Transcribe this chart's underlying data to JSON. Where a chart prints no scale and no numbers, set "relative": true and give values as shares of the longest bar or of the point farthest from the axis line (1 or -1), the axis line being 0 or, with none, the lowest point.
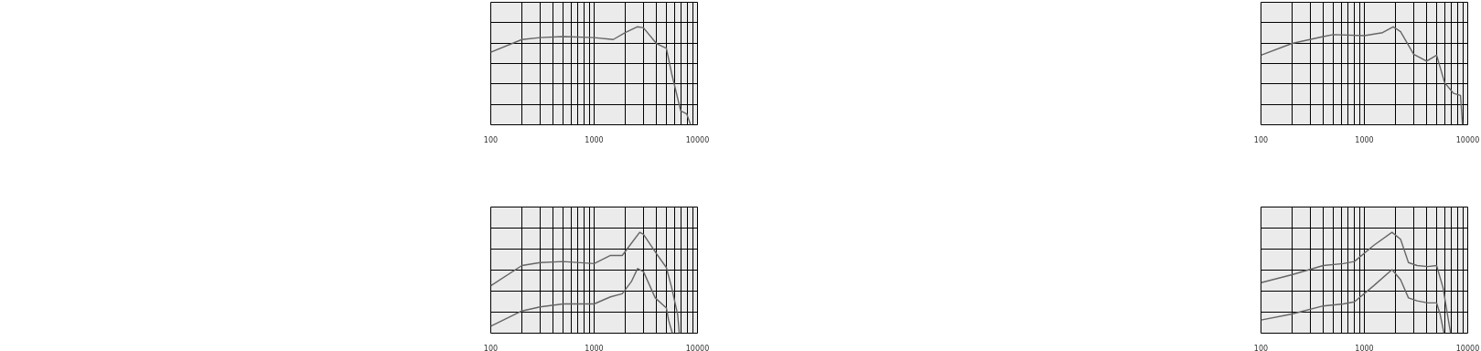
{
  "chart_data": [
    {
      "type": "line",
      "relative": true,
      "log": "x",
      "grid": true,
      "marker": "none",
      "line_style": "solid",
      "xlim": [
        100,
        10000
      ],
      "xticks": [
        100,
        1000,
        10000
      ],
      "series": [
        {
          "color": "#666666",
          "x": [
            100,
            200,
            300,
            500,
            1000,
            1530,
            2000,
            2610,
            3000,
            4000,
            5000,
            5630,
            6890,
            7870,
            8570
          ],
          "values": [
            0.74,
            0.87,
            0.89,
            0.9,
            0.89,
            0.87,
            0.94,
            1,
            0.99,
            0.83,
            0.78,
            0.52,
            0.14,
            0.11,
            0
          ]
        }
      ]
    },
    {
      "type": "line",
      "relative": true,
      "log": "x",
      "grid": true,
      "marker": "none",
      "line_style": "solid",
      "xlim": [
        100,
        10000
      ],
      "xticks": [
        100,
        1000,
        10000
      ],
      "series": [
        {
          "color": "#666666",
          "x": [
            100,
            200,
            300,
            500,
            1000,
            1440,
            1870,
            2290,
            2760,
            3000,
            4000,
            5000,
            5630,
            6440,
            6660
          ],
          "values": [
            0.47,
            0.67,
            0.7,
            0.71,
            0.69,
            0.77,
            0.77,
            0.89,
            1,
            0.98,
            0.79,
            0.65,
            0.45,
            0.18,
            0
          ]
        },
        {
          "color": "#666666",
          "x": [
            100,
            200,
            300,
            500,
            1000,
            1440,
            1870,
            2290,
            2630,
            3000,
            3900,
            5000,
            5250,
            5710
          ],
          "values": [
            0.07,
            0.22,
            0.26,
            0.29,
            0.29,
            0.36,
            0.39,
            0.51,
            0.64,
            0.61,
            0.35,
            0.25,
            0.13,
            0
          ]
        }
      ]
    },
    {
      "type": "line",
      "relative": true,
      "log": "x",
      "grid": true,
      "marker": "none",
      "line_style": "solid",
      "xlim": [
        100,
        10000
      ],
      "xticks": [
        100,
        1000,
        10000
      ],
      "series": [
        {
          "color": "#666666",
          "x": [
            100,
            200,
            400,
            500,
            1000,
            1500,
            1900,
            2240,
            3000,
            4000,
            5000,
            5970,
            7300,
            8510,
            8900
          ],
          "values": [
            0.71,
            0.83,
            0.9,
            0.92,
            0.91,
            0.94,
            1,
            0.95,
            0.72,
            0.65,
            0.71,
            0.43,
            0.32,
            0.3,
            0
          ]
        }
      ]
    },
    {
      "type": "line",
      "relative": true,
      "log": "x",
      "grid": true,
      "marker": "none",
      "line_style": "solid",
      "xlim": [
        100,
        10000
      ],
      "xticks": [
        100,
        1000,
        10000
      ],
      "series": [
        {
          "color": "#666666",
          "x": [
            100,
            200,
            400,
            625,
            800,
            1230,
            1850,
            2240,
            2670,
            3240,
            4110,
            5000,
            5770,
            6820
          ],
          "values": [
            0.5,
            0.58,
            0.67,
            0.69,
            0.71,
            0.87,
            1,
            0.93,
            0.7,
            0.67,
            0.66,
            0.67,
            0.45,
            0
          ]
        },
        {
          "color": "#666666",
          "x": [
            100,
            200,
            400,
            625,
            800,
            1230,
            1850,
            2240,
            2670,
            3240,
            4110,
            5000,
            5400,
            5890
          ],
          "values": [
            0.13,
            0.19,
            0.27,
            0.29,
            0.31,
            0.47,
            0.63,
            0.53,
            0.35,
            0.32,
            0.3,
            0.3,
            0.19,
            0
          ]
        }
      ]
    }
  ]
}
